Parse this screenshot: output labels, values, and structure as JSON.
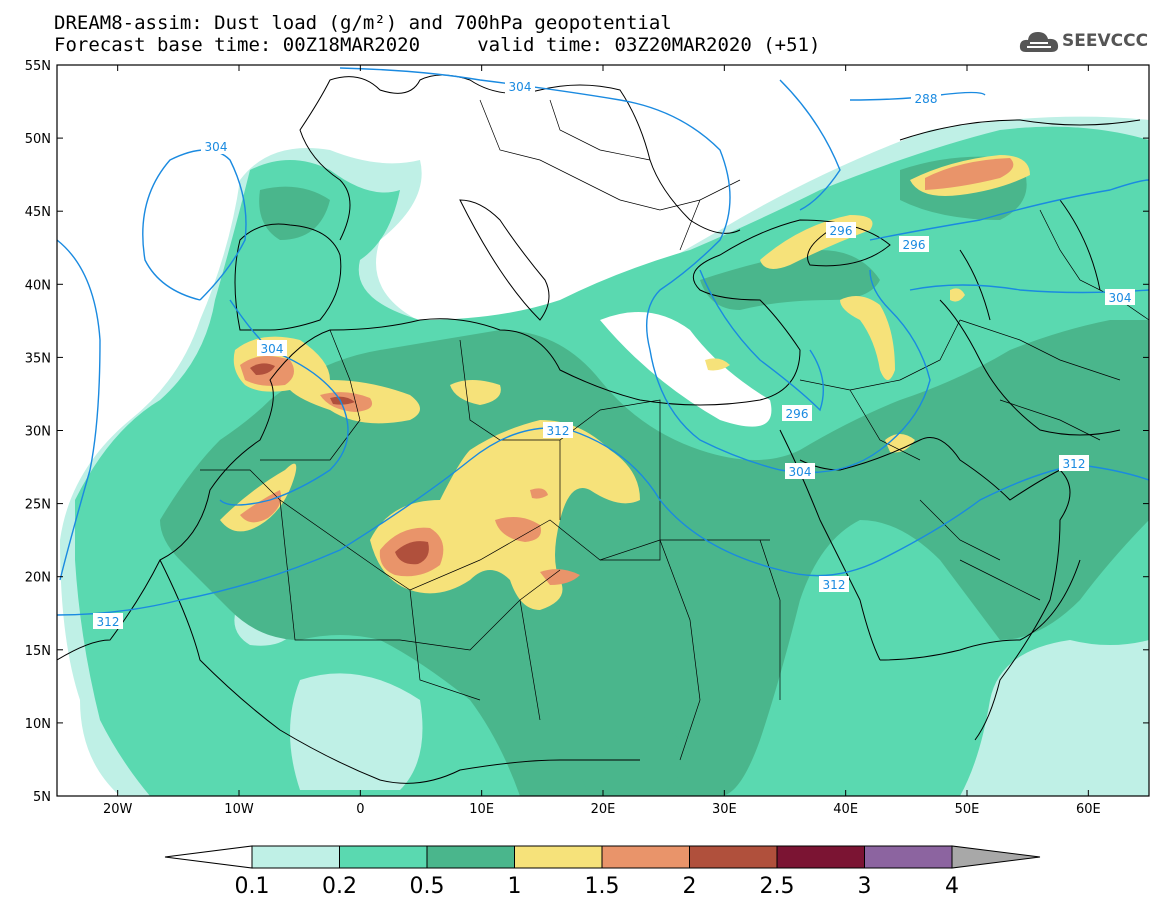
{
  "title": {
    "line1": "DREAM8-assim: Dust load (g/m²) and 700hPa geopotential",
    "line2": "Forecast base time: 00Z18MAR2020     valid time: 03Z20MAR2020 (+51)"
  },
  "logo": {
    "text": "SEEVCCC",
    "icon": "cloud-icon"
  },
  "axes": {
    "lat_labels": [
      "55N",
      "50N",
      "45N",
      "40N",
      "35N",
      "30N",
      "25N",
      "20N",
      "15N",
      "10N",
      "5N"
    ],
    "lon_labels": [
      "20W",
      "10W",
      "0",
      "10E",
      "20E",
      "30E",
      "40E",
      "50E",
      "60E"
    ]
  },
  "contour_labels": [
    "304",
    "288",
    "304",
    "296",
    "296",
    "304",
    "304",
    "312",
    "296",
    "304",
    "312",
    "312",
    "312"
  ],
  "legend": {
    "levels": [
      "0.1",
      "0.2",
      "0.5",
      "1",
      "1.5",
      "2",
      "2.5",
      "3",
      "4"
    ],
    "colors": [
      "#ffffff",
      "#bff0e6",
      "#5ad9b0",
      "#4ab68c",
      "#f6e27a",
      "#e9946a",
      "#b0503c",
      "#7b1433",
      "#8c64a0",
      "#a8a8a8"
    ]
  },
  "colors": {
    "contour": "#1a8ae0",
    "c1": "#bff0e6",
    "c2": "#5ad9b0",
    "c3": "#4ab68c",
    "c4": "#f6e27a",
    "c5": "#e9946a",
    "c6": "#b0503c",
    "c7": "#7b1433"
  }
}
